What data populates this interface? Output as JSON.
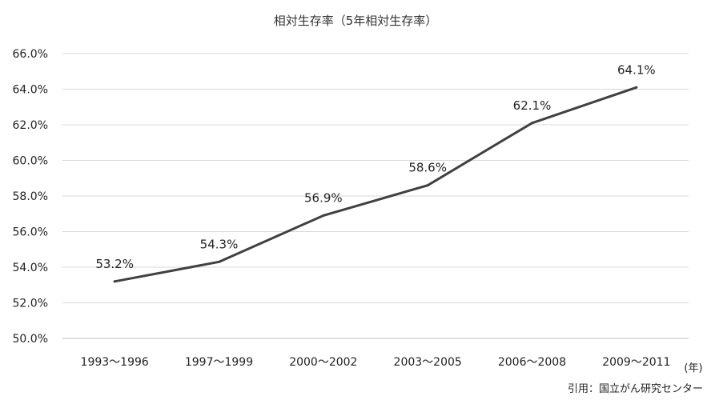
{
  "chart_data": {
    "type": "line",
    "title": "相対生存率（5年相対生存率）",
    "categories": [
      "1993〜1996",
      "1997〜1999",
      "2000〜2002",
      "2003〜2005",
      "2006〜2008",
      "2009〜2011"
    ],
    "series": [
      {
        "values": [
          53.2,
          54.3,
          56.9,
          58.6,
          62.1,
          64.1
        ],
        "labels": [
          "53.2%",
          "54.3%",
          "56.9%",
          "58.6%",
          "62.1%",
          "64.1%"
        ],
        "color": "#404040"
      }
    ],
    "ylim": [
      50.0,
      66.0
    ],
    "yticks": [
      50.0,
      52.0,
      54.0,
      56.0,
      58.0,
      60.0,
      62.0,
      64.0,
      66.0
    ],
    "ytick_labels": [
      "50.0%",
      "52.0%",
      "54.0%",
      "56.0%",
      "58.0%",
      "60.0%",
      "62.0%",
      "64.0%",
      "66.0%"
    ],
    "xunit": "(年)",
    "grid": true,
    "source": "引用：国立がん研究センター"
  }
}
